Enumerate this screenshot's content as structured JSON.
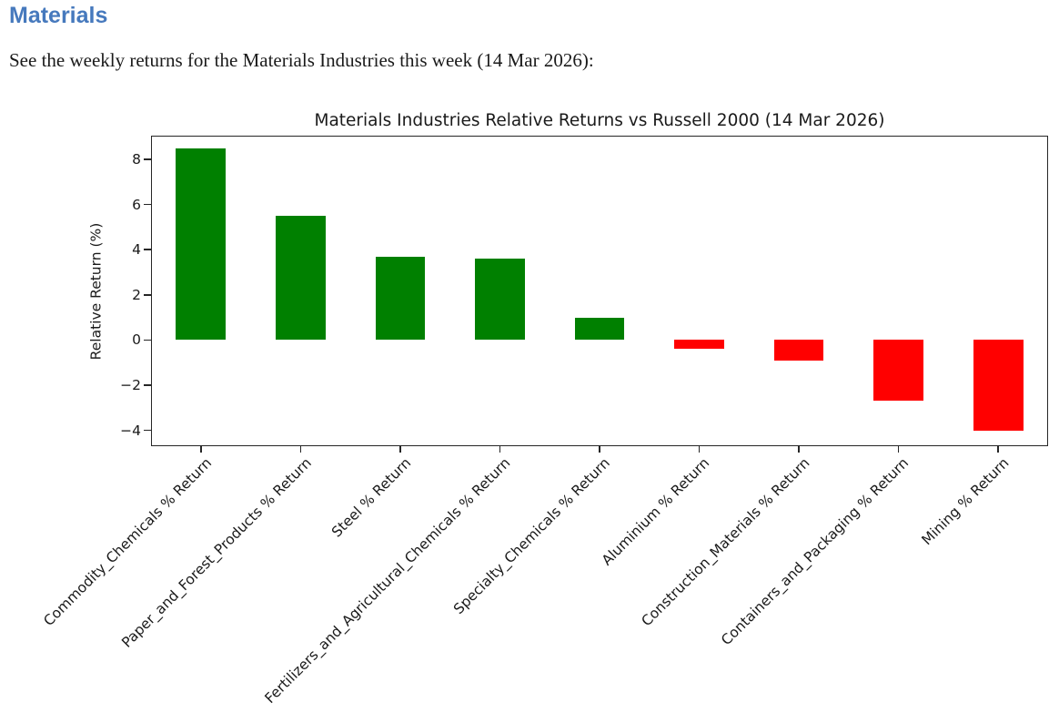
{
  "page": {
    "heading": "Materials",
    "heading_color": "#4679bd",
    "intro": "See the weekly returns for the Materials Industries this week (14 Mar 2026):"
  },
  "chart_data": {
    "type": "bar",
    "title": "Materials Industries Relative Returns vs Russell 2000 (14 Mar 2026)",
    "xlabel": "",
    "ylabel": "Relative Return (%)",
    "categories": [
      "Commodity_Chemicals % Return",
      "Paper_and_Forest_Products % Return",
      "Steel % Return",
      "Fertilizers_and_Agricultural_Chemicals % Return",
      "Specialty_Chemicals % Return",
      "Aluminium % Return",
      "Construction_Materials % Return",
      "Containers_and_Packaging % Return",
      "Mining % Return"
    ],
    "values": [
      8.5,
      5.5,
      3.7,
      3.6,
      1.0,
      -0.4,
      -0.9,
      -2.7,
      -4.0
    ],
    "bar_colors": {
      "positive": "#008000",
      "negative": "#ff0000"
    },
    "yticks": [
      8,
      6,
      4,
      2,
      0,
      -2,
      -4
    ],
    "ytick_labels": [
      "8",
      "6",
      "4",
      "2",
      "0",
      "−2",
      "−4"
    ],
    "ylim": [
      -4.7,
      9.05
    ],
    "bar_width_frac": 0.5,
    "grid": false,
    "legend": "none",
    "x_tick_rotation_deg": 45
  }
}
